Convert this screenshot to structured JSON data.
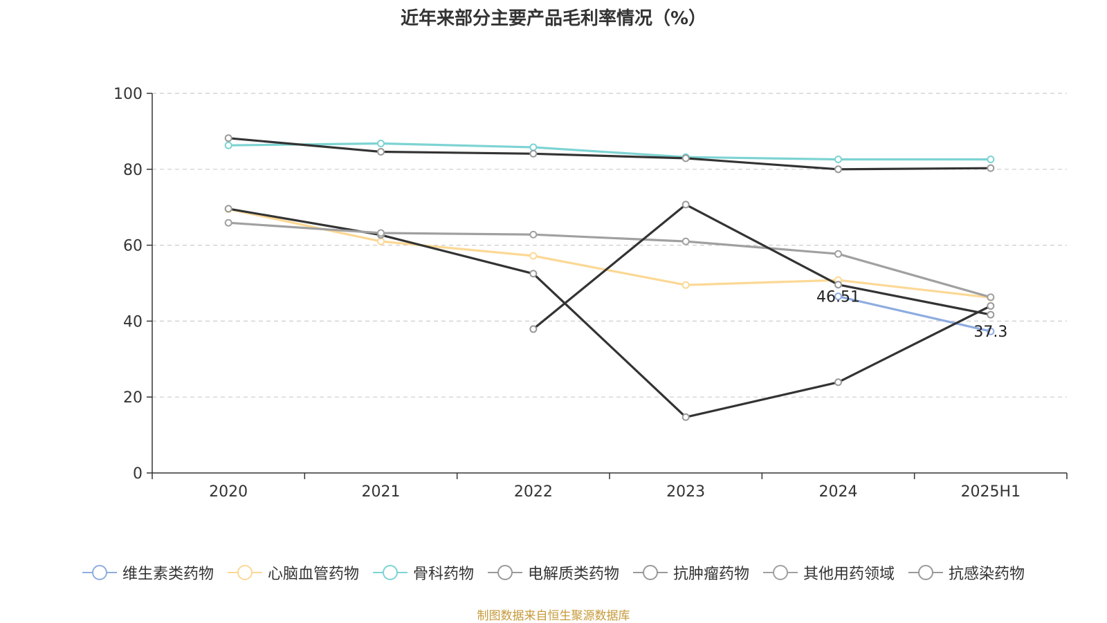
{
  "chart_data": {
    "type": "line",
    "title": "近年来部分主要产品毛利率情况（%）",
    "categories": [
      "2020",
      "2021",
      "2022",
      "2023",
      "2024",
      "2025H1"
    ],
    "ylim": [
      0,
      100
    ],
    "yticks": [
      0,
      20,
      40,
      60,
      80,
      100
    ],
    "grid": true,
    "legend_position": "bottom",
    "series": [
      {
        "name": "维生素类药物",
        "color": "#8eacdf",
        "values": [
          null,
          null,
          null,
          null,
          46.51,
          37.3
        ]
      },
      {
        "name": "心脑血管药物",
        "color": "#fcd895",
        "values": [
          69.5,
          61.0,
          57.2,
          49.5,
          50.8,
          46.2
        ]
      },
      {
        "name": "骨科药物",
        "color": "#7dd3d3",
        "values": [
          86.3,
          86.8,
          85.8,
          83.2,
          82.6,
          82.6
        ]
      },
      {
        "name": "电解质类药物",
        "color": "#333333",
        "values": [
          88.2,
          84.6,
          84.1,
          82.9,
          80.0,
          80.3
        ]
      },
      {
        "name": "抗肿瘤药物",
        "color": "#333333",
        "values": [
          69.6,
          62.7,
          52.5,
          14.7,
          23.9,
          44.0
        ]
      },
      {
        "name": "其他用药领域",
        "color": "#a0a0a0",
        "values": [
          65.9,
          63.2,
          62.8,
          61.0,
          57.7,
          46.3
        ]
      },
      {
        "name": "抗感染药物",
        "color": "#333333",
        "values": [
          null,
          null,
          37.9,
          70.7,
          49.6,
          41.7
        ]
      }
    ],
    "data_labels": [
      {
        "series": 0,
        "index": 4,
        "text": "46.51"
      },
      {
        "series": 0,
        "index": 5,
        "text": "37.3"
      }
    ]
  },
  "footer": {
    "source": "制图数据来自恒生聚源数据库"
  }
}
